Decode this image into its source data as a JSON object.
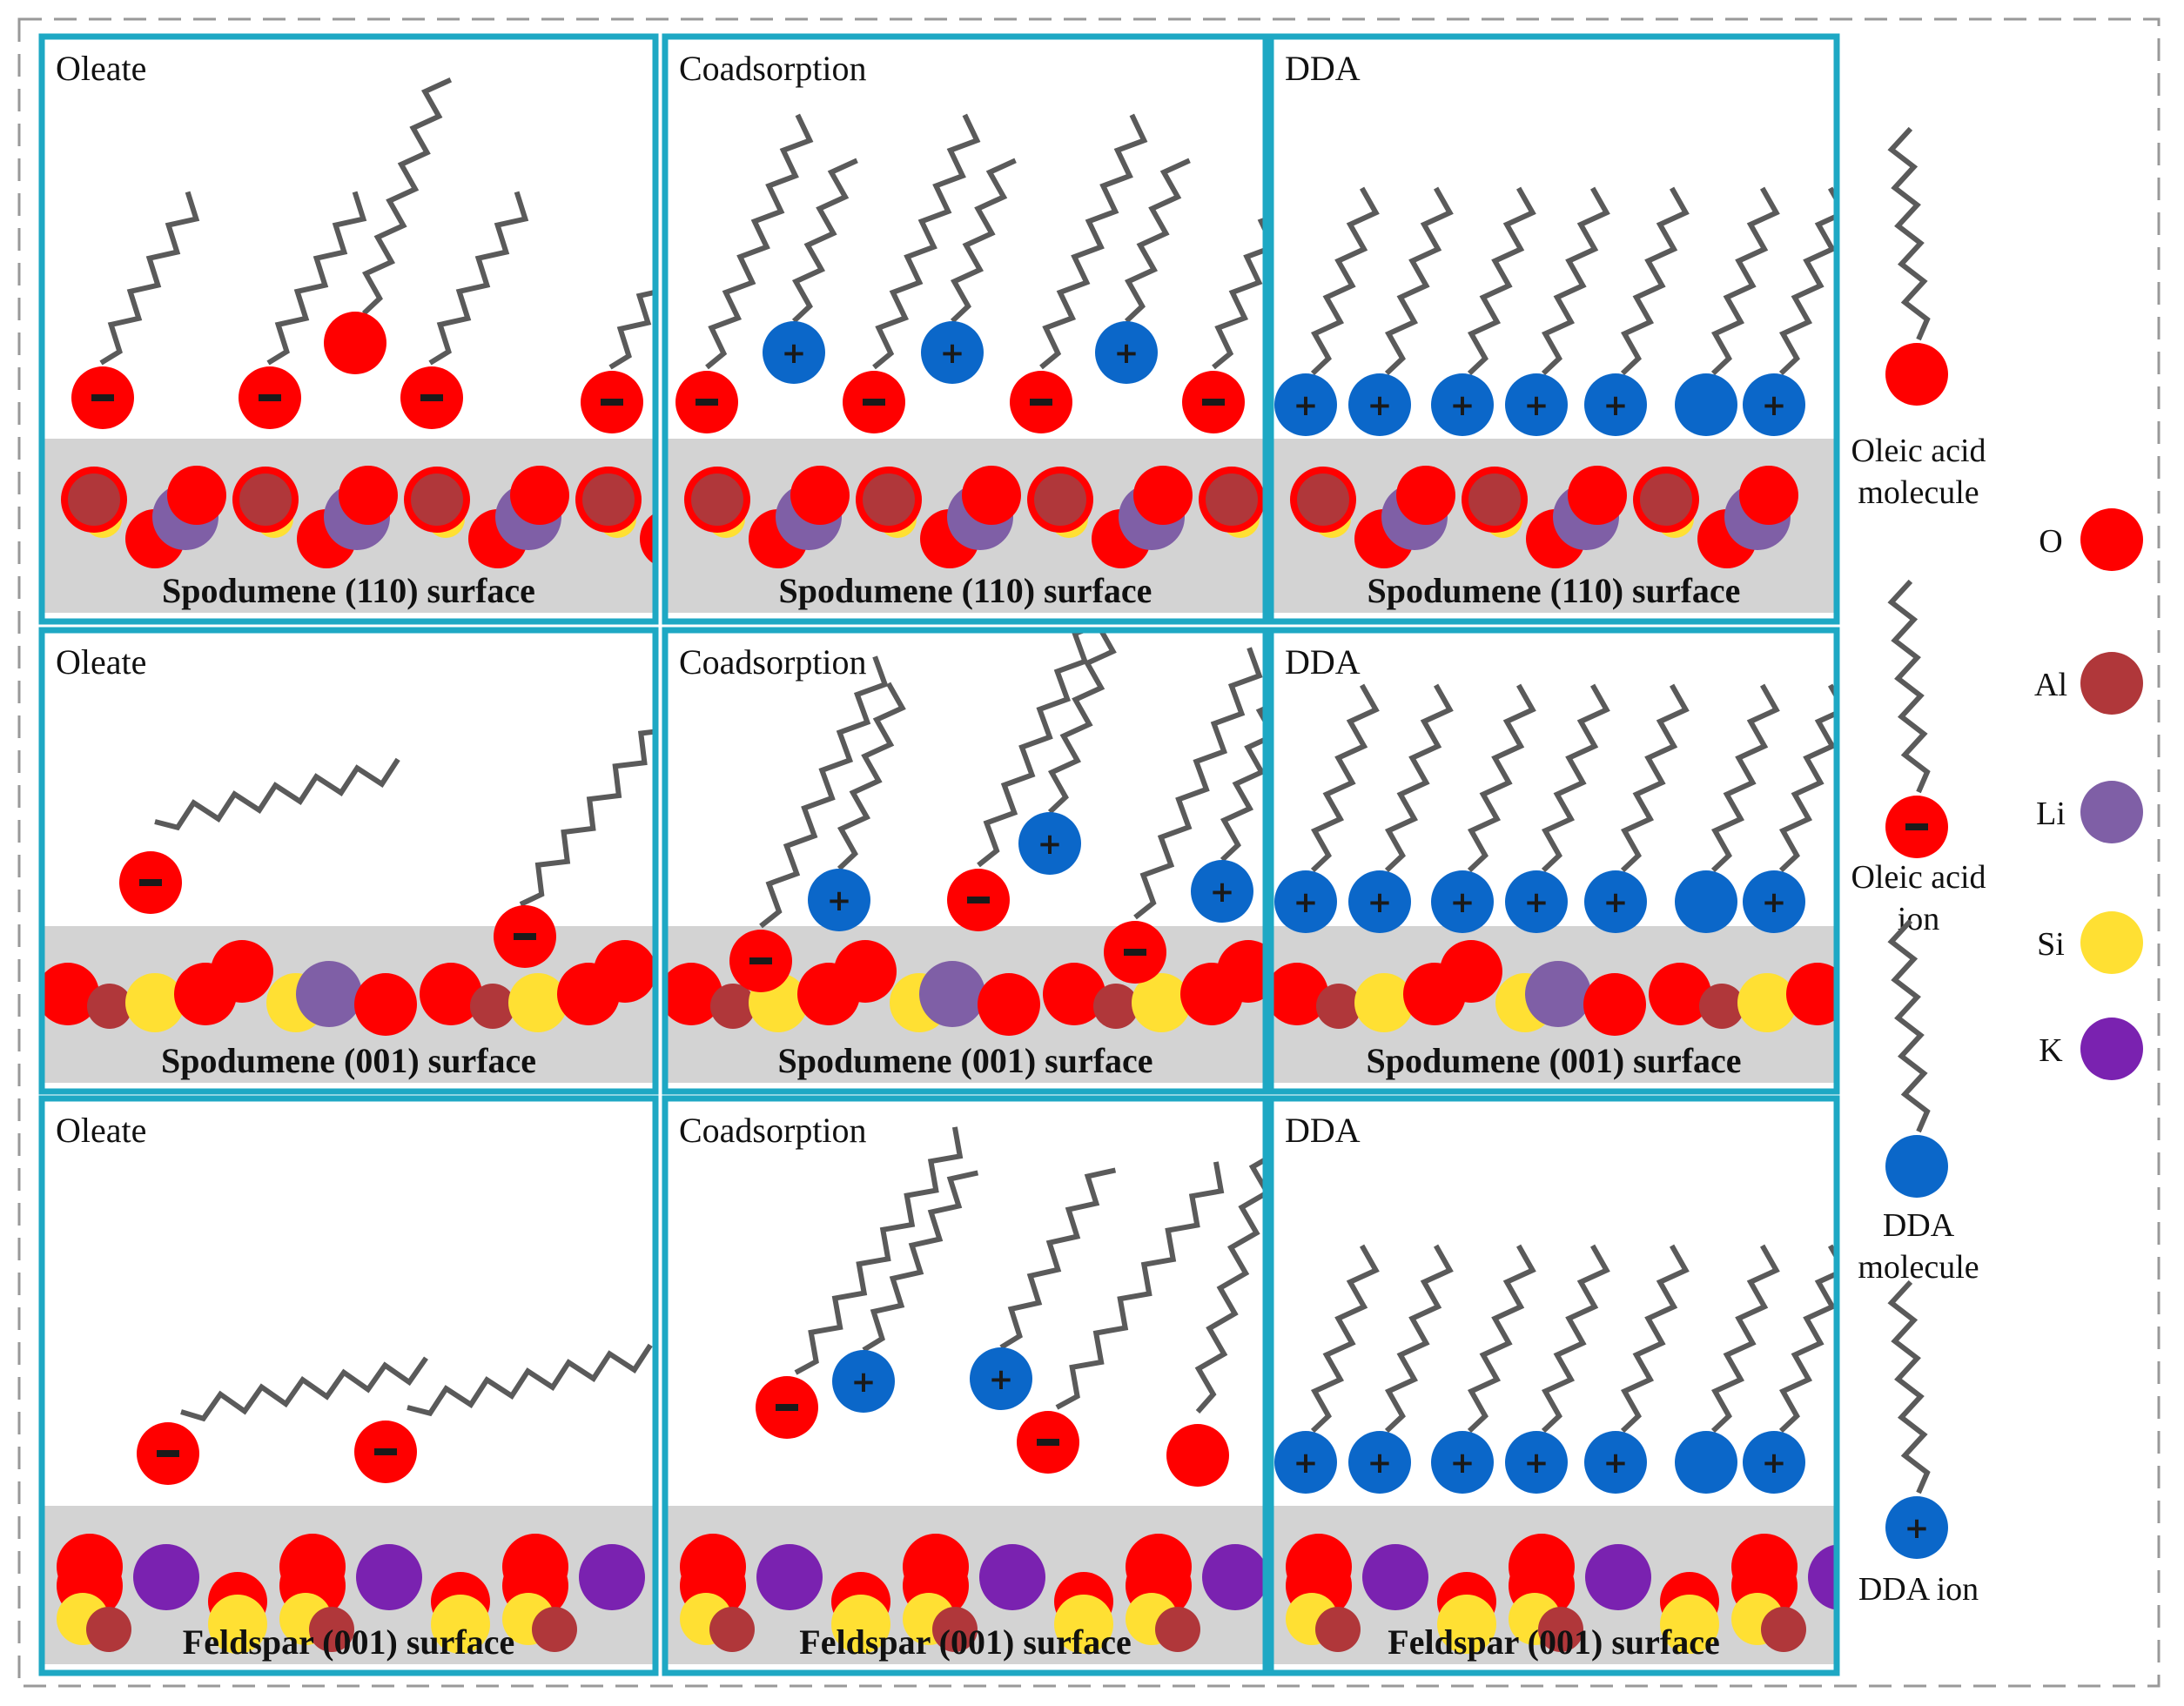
{
  "figure": {
    "rows": [
      {
        "surface": "Spodumene (110) surface",
        "panels": [
          {
            "title": "Oleate"
          },
          {
            "title": "Coadsorption"
          },
          {
            "title": "DDA"
          }
        ]
      },
      {
        "surface": "Spodumene (001) surface",
        "panels": [
          {
            "title": "Oleate"
          },
          {
            "title": "Coadsorption"
          },
          {
            "title": "DDA"
          }
        ]
      },
      {
        "surface": "Feldspar (001) surface",
        "panels": [
          {
            "title": "Oleate"
          },
          {
            "title": "Coadsorption"
          },
          {
            "title": "DDA"
          }
        ]
      }
    ]
  },
  "legend": {
    "species": [
      {
        "label_line1": "Oleic acid",
        "label_line2": "molecule",
        "type": "oleic-molecule"
      },
      {
        "label_line1": "Oleic acid",
        "label_line2": "ion",
        "type": "oleic-ion"
      },
      {
        "label_line1": "DDA",
        "label_line2": "molecule",
        "type": "dda-molecule"
      },
      {
        "label_line1": "DDA ion",
        "label_line2": "",
        "type": "dda-ion"
      }
    ],
    "atoms": [
      {
        "symbol": "O",
        "color": "#ff0000"
      },
      {
        "symbol": "Al",
        "color": "#b0373a"
      },
      {
        "symbol": "Li",
        "color": "#7f5fa6"
      },
      {
        "symbol": "Si",
        "color": "#ffe033"
      },
      {
        "symbol": "K",
        "color": "#7a22b0"
      }
    ]
  },
  "colors": {
    "panel_border": "#1ea8c4",
    "surface_band": "#d3d3d3",
    "chain": "#5a5a5a",
    "oxygen": "#ff0000",
    "dda_head": "#0b67c9",
    "outer_dash": "#999999"
  },
  "symbols": {
    "minus": "−",
    "plus": "+"
  }
}
